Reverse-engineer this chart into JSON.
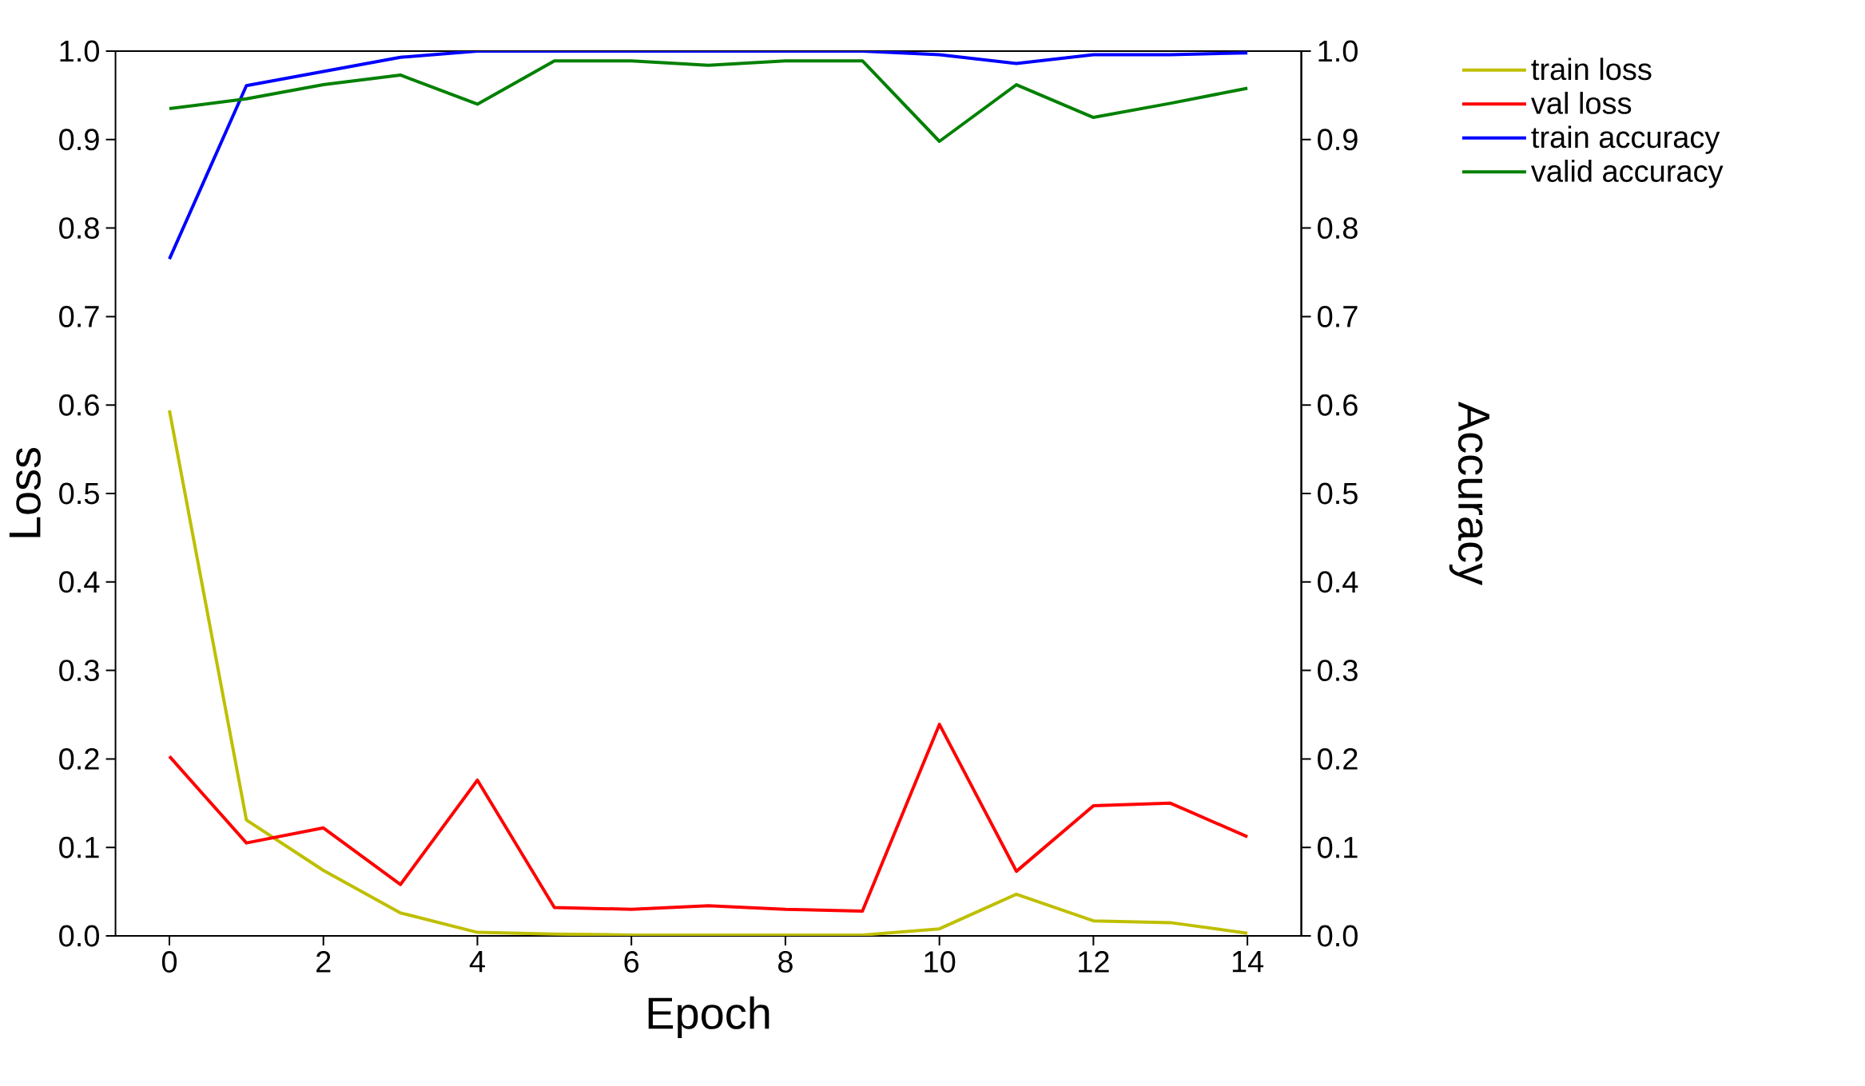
{
  "chart_data": {
    "type": "line",
    "xlabel": "Epoch",
    "ylabel": "Loss",
    "y2label": "Accuracy",
    "legend": "right",
    "line_style": "solid",
    "marker": "none",
    "x": [
      0,
      1,
      2,
      3,
      4,
      5,
      6,
      7,
      8,
      9,
      10,
      11,
      12,
      13,
      14
    ],
    "xlim": [
      -0.7,
      14.7
    ],
    "xticks": [
      0,
      2,
      4,
      6,
      8,
      10,
      12,
      14
    ],
    "ylim": [
      0,
      1
    ],
    "yticks": [
      {
        "value": 0,
        "label": "0.0"
      },
      0.1,
      0.2,
      0.3,
      0.4,
      0.5,
      0.6,
      0.7,
      0.8,
      0.9,
      {
        "value": 1,
        "label": "1.0"
      }
    ],
    "y2lim": [
      0,
      1
    ],
    "y2ticks": [
      {
        "value": 0,
        "label": "0.0"
      },
      0.1,
      0.2,
      0.3,
      0.4,
      0.5,
      0.6,
      0.7,
      0.8,
      0.9,
      {
        "value": 1,
        "label": "1.0"
      }
    ],
    "series": [
      {
        "name": "train loss",
        "color": "#bfbf00",
        "values": [
          0.594,
          0.131,
          0.074,
          0.026,
          0.004,
          0.002,
          0.001,
          0.001,
          0.001,
          0.001,
          0.008,
          0.047,
          0.017,
          0.015,
          0.003
        ]
      },
      {
        "name": "val loss",
        "color": "#ff0000",
        "values": [
          0.203,
          0.105,
          0.122,
          0.058,
          0.176,
          0.032,
          0.03,
          0.034,
          0.03,
          0.028,
          0.239,
          0.073,
          0.147,
          0.15,
          0.112
        ]
      },
      {
        "name": "train accuracy",
        "color": "#0000ff",
        "axis": "y2",
        "values": [
          0.765,
          0.961,
          0.977,
          0.993,
          1.0,
          1.0,
          1.0,
          1.0,
          1.0,
          1.0,
          0.996,
          0.986,
          0.996,
          0.996,
          0.998
        ]
      },
      {
        "name": "valid accuracy",
        "color": "#008000",
        "axis": "y2",
        "values": [
          0.935,
          0.946,
          0.962,
          0.973,
          0.94,
          0.989,
          0.989,
          0.984,
          0.989,
          0.989,
          0.898,
          0.962,
          0.925,
          0.941,
          0.958
        ]
      }
    ]
  }
}
